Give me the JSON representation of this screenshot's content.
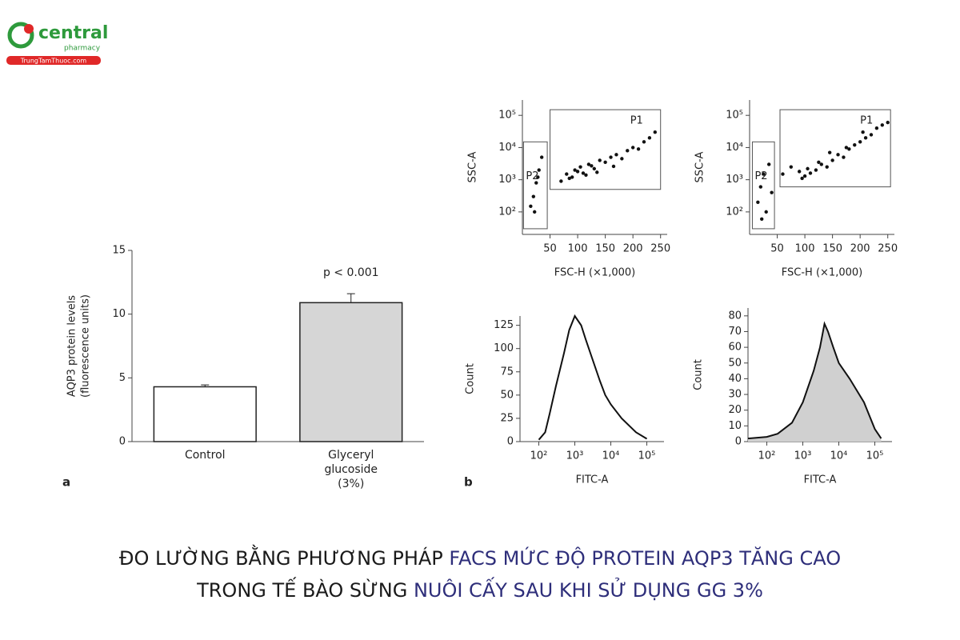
{
  "logo": {
    "brand": "central",
    "sub": "pharmacy",
    "site": "TrungTamThuoc.com"
  },
  "caption": {
    "lines": [
      [
        {
          "text": "ĐO LƯỜNG BẰNG PHƯƠNG PHÁP ",
          "color": "#1a1a1a"
        },
        {
          "text": "FACS MỨC ĐỘ PROTEIN AQP3 TĂNG CAO",
          "color": "#2e2e7a"
        }
      ],
      [
        {
          "text": "TRONG TẾ BÀO SỪNG ",
          "color": "#1a1a1a"
        },
        {
          "text": "NUÔI CẤY SAU KHI SỬ DỤNG GG 3%",
          "color": "#2e2e7a"
        }
      ]
    ]
  },
  "chart_data": [
    {
      "type": "bar",
      "panel_label": "a",
      "y_label": [
        "AQP3 protein levels",
        "(fluorescence units)"
      ],
      "categories": [
        "Control",
        "Glyceryl glucoside (3%)"
      ],
      "values": [
        4.3,
        10.9
      ],
      "errors": [
        0.15,
        0.7
      ],
      "colors": [
        "#ffffff",
        "#d6d6d6"
      ],
      "annotation": "p < 0.001",
      "ylim": [
        0,
        15
      ],
      "yticks": [
        0,
        5,
        10,
        15
      ]
    },
    {
      "type": "scatter",
      "x_label": "FSC-H (×1,000)",
      "y_label": "SSC-A",
      "xlim": [
        0,
        262
      ],
      "ylim": [
        20,
        300000
      ],
      "yscale": "log",
      "xticks": [
        50,
        100,
        150,
        200,
        250
      ],
      "yticks": [
        {
          "value": 100,
          "label": "10²"
        },
        {
          "value": 1000,
          "label": "10³"
        },
        {
          "value": 10000,
          "label": "10⁴"
        },
        {
          "value": 100000,
          "label": "10⁵"
        }
      ],
      "gates": [
        {
          "name": "P1",
          "x": [
            50,
            250
          ],
          "y": [
            500,
            150000
          ]
        },
        {
          "name": "P2",
          "x": [
            2,
            45
          ],
          "y": [
            30,
            15000
          ]
        }
      ],
      "x": [
        80,
        95,
        100,
        105,
        110,
        120,
        90,
        130,
        140,
        150,
        160,
        170,
        180,
        190,
        200,
        210,
        220,
        230,
        240,
        115,
        125,
        85,
        70,
        135,
        165,
        20,
        25,
        30,
        15,
        35,
        22,
        28
      ],
      "y": [
        1500,
        2000,
        1800,
        2500,
        1600,
        3000,
        1200,
        2200,
        4000,
        3500,
        5000,
        6000,
        4500,
        8000,
        10000,
        9000,
        15000,
        20000,
        30000,
        1400,
        2700,
        1100,
        900,
        1700,
        2600,
        300,
        800,
        2000,
        150,
        5000,
        100,
        1200
      ]
    },
    {
      "type": "scatter",
      "x_label": "FSC-H (×1,000)",
      "y_label": "SSC-A",
      "xlim": [
        0,
        262
      ],
      "ylim": [
        20,
        300000
      ],
      "yscale": "log",
      "xticks": [
        50,
        100,
        150,
        200,
        250
      ],
      "yticks": [
        {
          "value": 100,
          "label": "10²"
        },
        {
          "value": 1000,
          "label": "10³"
        },
        {
          "value": 10000,
          "label": "10⁴"
        },
        {
          "value": 100000,
          "label": "10⁵"
        }
      ],
      "gates": [
        {
          "name": "P1",
          "x": [
            55,
            255
          ],
          "y": [
            600,
            150000
          ]
        },
        {
          "name": "P2",
          "x": [
            5,
            45
          ],
          "y": [
            30,
            15000
          ]
        }
      ],
      "x": [
        60,
        75,
        90,
        100,
        110,
        120,
        130,
        140,
        150,
        160,
        170,
        180,
        190,
        200,
        210,
        220,
        230,
        240,
        250,
        95,
        105,
        125,
        145,
        175,
        205,
        15,
        20,
        25,
        30,
        35,
        40,
        22
      ],
      "y": [
        1500,
        2500,
        1800,
        1300,
        1600,
        2000,
        3000,
        2500,
        4000,
        6000,
        5000,
        9000,
        12000,
        15000,
        20000,
        25000,
        40000,
        50000,
        60000,
        1100,
        2200,
        3500,
        7000,
        10000,
        30000,
        200,
        600,
        1500,
        100,
        3000,
        400,
        60
      ]
    },
    {
      "type": "line",
      "panel_label": "b",
      "x_label": "FITC-A",
      "y_label": "Count",
      "xlim": [
        30,
        300000
      ],
      "xscale": "log",
      "ylim": [
        0,
        135
      ],
      "xticks": [
        {
          "value": 100,
          "label": "10²"
        },
        {
          "value": 1000,
          "label": "10³"
        },
        {
          "value": 10000,
          "label": "10⁴"
        },
        {
          "value": 100000,
          "label": "10⁵"
        }
      ],
      "yticks": [
        0,
        25,
        50,
        75,
        100,
        125
      ],
      "x": [
        100,
        150,
        200,
        300,
        500,
        700,
        1000,
        1500,
        2000,
        3000,
        5000,
        7000,
        10000,
        20000,
        50000,
        100000
      ],
      "series": [
        {
          "color": "#111111",
          "values": [
            2,
            10,
            30,
            60,
            95,
            120,
            135,
            125,
            110,
            90,
            65,
            50,
            40,
            25,
            10,
            3
          ]
        }
      ]
    },
    {
      "type": "area",
      "x_label": "FITC-A",
      "y_label": "Count",
      "xlim": [
        30,
        300000
      ],
      "xscale": "log",
      "ylim": [
        0,
        85
      ],
      "xticks": [
        {
          "value": 100,
          "label": "10²"
        },
        {
          "value": 1000,
          "label": "10³"
        },
        {
          "value": 10000,
          "label": "10⁴"
        },
        {
          "value": 100000,
          "label": "10⁵"
        }
      ],
      "yticks": [
        0,
        10,
        20,
        30,
        40,
        50,
        60,
        70,
        80
      ],
      "x": [
        30,
        100,
        200,
        500,
        1000,
        2000,
        3000,
        4000,
        5000,
        7000,
        10000,
        20000,
        50000,
        100000,
        150000
      ],
      "series": [
        {
          "color": "#111111",
          "fill": "#d0d0d0",
          "values": [
            2,
            3,
            5,
            12,
            25,
            45,
            60,
            75,
            70,
            60,
            50,
            40,
            25,
            8,
            2
          ]
        }
      ]
    }
  ]
}
